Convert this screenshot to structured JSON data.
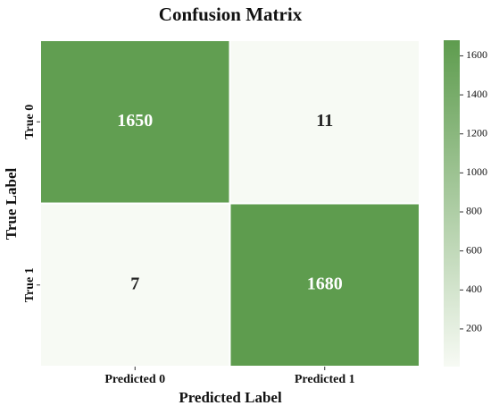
{
  "chart_data": {
    "type": "heatmap",
    "title": "Confusion Matrix",
    "x_label": "Predicted Label",
    "y_label": "True Label",
    "x_categories": [
      "Predicted 0",
      "Predicted 1"
    ],
    "y_categories": [
      "True 0",
      "True 1"
    ],
    "values": [
      [
        1650,
        11
      ],
      [
        7,
        1680
      ]
    ],
    "colors": [
      "#f7faf4",
      "#5e9c4e"
    ],
    "zlim": [
      7,
      1680
    ],
    "zticks": [
      200,
      400,
      600,
      800,
      1000,
      1200,
      1400,
      1600
    ]
  }
}
